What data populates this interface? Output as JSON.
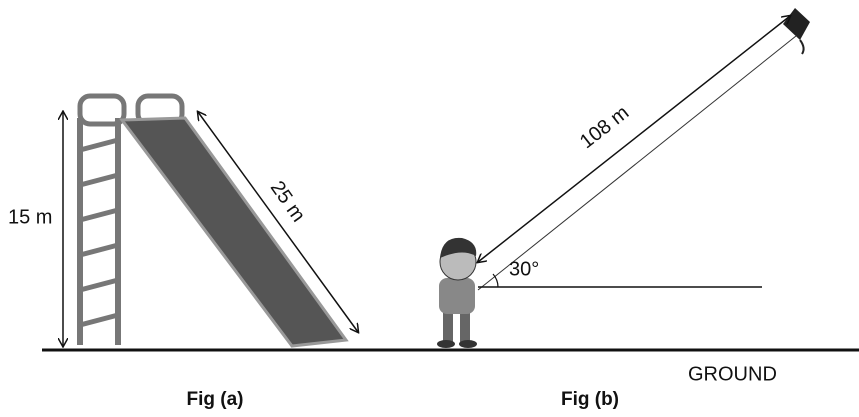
{
  "figure_a": {
    "height_label": "15 m",
    "slide_label": "25 m",
    "caption": "Fig (a)"
  },
  "figure_b": {
    "string_label": "108 m",
    "angle_label": "30°",
    "ground_label": "GROUND",
    "caption": "Fig (b)"
  }
}
